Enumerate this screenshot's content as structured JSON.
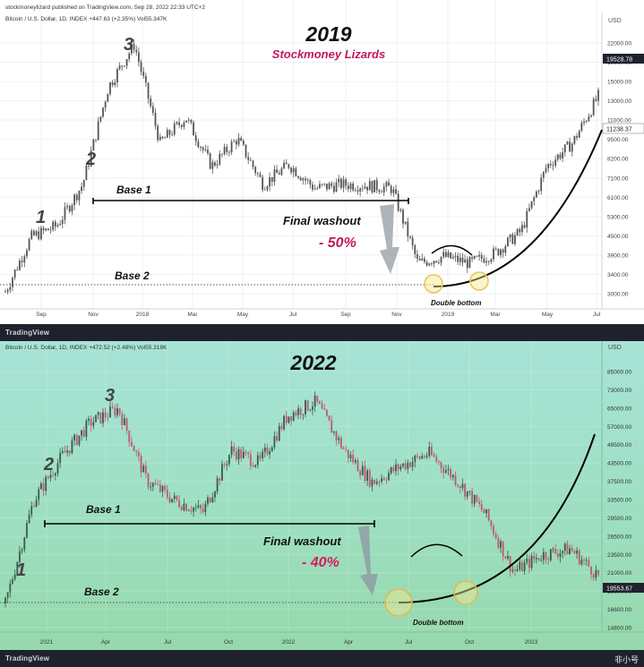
{
  "panels": [
    {
      "header": "stockmoneylizard published on TradingView.com, Sep 28, 2022 22:33 UTC+2",
      "symbol": "Bitcoin / U.S. Dollar, 1D, INDEX  +447.63 (+2.35%)  Vol55.347K",
      "title": "2019",
      "subtitle": "Stockmoney Lizards",
      "currency": "USD",
      "price_ticks": [
        "22000.00",
        "19000.00",
        "15000.00",
        "13000.00",
        "11000.00",
        "9500.00",
        "8200.00",
        "7100.00",
        "6100.00",
        "5300.00",
        "4500.00",
        "3900.00",
        "3400.00",
        "3000.00"
      ],
      "price_labels": [
        {
          "text": "19528.78",
          "style": "dark"
        },
        {
          "text": "11238.37",
          "style": "light"
        }
      ],
      "x_ticks": [
        "Sep",
        "Nov",
        "2018",
        "Mar",
        "May",
        "Jul",
        "Sep",
        "Nov",
        "2019",
        "Mar",
        "May",
        "Jul"
      ],
      "annotations": {
        "wave1": "1",
        "wave2": "2",
        "wave3": "3",
        "base1": "Base 1",
        "base2": "Base 2",
        "washout": "Final washout",
        "drop": "- 50%",
        "double_bottom": "Double bottom"
      }
    },
    {
      "header": "",
      "symbol": "Bitcoin / U.S. Dollar, 1D, INDEX  +472.52 (+2.48%)  Vol55.318K",
      "title": "2022",
      "subtitle": "",
      "currency": "USD",
      "price_ticks": [
        "85000.00",
        "73000.00",
        "65000.00",
        "57000.00",
        "49500.00",
        "43500.00",
        "37500.00",
        "33500.00",
        "29500.00",
        "26500.00",
        "23500.00",
        "21000.00",
        "18600.00",
        "16600.00",
        "14800.00"
      ],
      "price_labels": [
        {
          "text": "19553.67",
          "style": "dark"
        }
      ],
      "x_ticks": [
        "2021",
        "Apr",
        "Jul",
        "Oct",
        "2022",
        "Apr",
        "Jul",
        "Oct",
        "2023"
      ],
      "annotations": {
        "wave1": "1",
        "wave2": "2",
        "wave3": "3",
        "base1": "Base 1",
        "base2": "Base 2",
        "washout": "Final washout",
        "drop": "- 40%",
        "double_bottom": "Double bottom"
      }
    }
  ],
  "brand": "TradingView",
  "watermark": "非小号",
  "colors": {
    "candle_1": "#555555",
    "candle_up_2": "#3e5a4c",
    "candle_down_2": "#c3566f",
    "drop_1": "#c2185b",
    "drop_2": "#d81b60",
    "subtitle": "#c2185b",
    "circle": "#f3e48a"
  },
  "chart_data": [
    {
      "type": "line",
      "title": "2019",
      "ylabel": "USD",
      "ylim": [
        2500,
        24000
      ],
      "log_scale": true,
      "x": [
        "2017-08",
        "2017-09",
        "2017-10",
        "2017-11",
        "2017-12",
        "2018-01",
        "2018-02",
        "2018-03",
        "2018-04",
        "2018-05",
        "2018-06",
        "2018-07",
        "2018-08",
        "2018-09",
        "2018-10",
        "2018-11",
        "2018-12",
        "2019-01",
        "2019-02",
        "2019-03",
        "2019-04",
        "2019-05",
        "2019-06",
        "2019-07"
      ],
      "series": [
        {
          "values": [
            2800,
            4300,
            4700,
            6500,
            14000,
            19500,
            9000,
            11000,
            7500,
            9300,
            6500,
            7600,
            6300,
            6500,
            6450,
            6300,
            3500,
            3700,
            3500,
            3800,
            4500,
            7500,
            9000,
            13000
          ]
        }
      ]
    },
    {
      "type": "line",
      "title": "2022",
      "ylabel": "USD",
      "ylim": [
        13500,
        95000
      ],
      "log_scale": true,
      "x": [
        "2020-12",
        "2021-01",
        "2021-02",
        "2021-03",
        "2021-04",
        "2021-05",
        "2021-06",
        "2021-07",
        "2021-08",
        "2021-09",
        "2021-10",
        "2021-11",
        "2021-12",
        "2022-01",
        "2022-02",
        "2022-03",
        "2022-04",
        "2022-05",
        "2022-06",
        "2022-07",
        "2022-08",
        "2022-09"
      ],
      "series": [
        {
          "values": [
            16000,
            33000,
            45000,
            57000,
            63000,
            38000,
            33000,
            30500,
            47000,
            43000,
            60000,
            66000,
            47000,
            37500,
            42000,
            46000,
            38000,
            30000,
            20000,
            22500,
            23500,
            19500
          ]
        }
      ]
    }
  ]
}
